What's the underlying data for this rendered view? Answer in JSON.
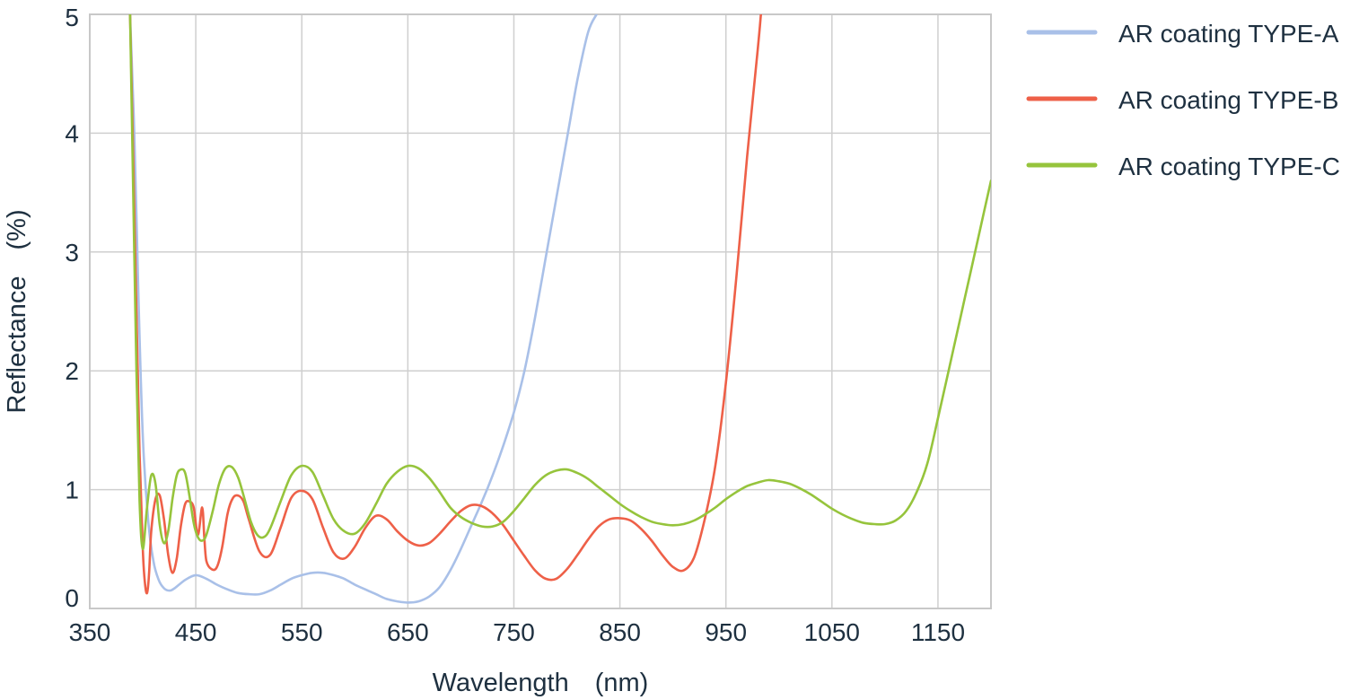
{
  "chart_data": {
    "type": "line",
    "title": "",
    "xlabel": "Wavelength (nm)",
    "ylabel": "Reflectance (%)",
    "xlim": [
      350,
      1200
    ],
    "ylim": [
      0,
      5
    ],
    "grid": true,
    "legend_position": "top-right (outside plot)",
    "xticks": [
      350,
      450,
      550,
      650,
      750,
      850,
      950,
      1050,
      1150
    ],
    "xtick_labels": [
      "350",
      "450",
      "550",
      "650",
      "750",
      "850",
      "950",
      "1050",
      "1150"
    ],
    "yticks": [
      0,
      1,
      2,
      3,
      4,
      5
    ],
    "ytick_labels": [
      "0",
      "1",
      "2",
      "3",
      "4",
      "5"
    ],
    "series": [
      {
        "name": "AR coating TYPE-A",
        "color": "#a9c0e8",
        "x": [
          388,
          392,
          396,
          400,
          405,
          410,
          415,
          420,
          425,
          430,
          440,
          450,
          460,
          470,
          480,
          490,
          500,
          510,
          520,
          530,
          540,
          550,
          560,
          570,
          580,
          590,
          600,
          610,
          620,
          630,
          640,
          650,
          660,
          670,
          680,
          690,
          700,
          710,
          720,
          730,
          740,
          750,
          760,
          770,
          780,
          790,
          800,
          810,
          820,
          828
        ],
        "y": [
          5.0,
          4.0,
          2.6,
          1.45,
          0.75,
          0.4,
          0.24,
          0.17,
          0.15,
          0.17,
          0.24,
          0.28,
          0.25,
          0.2,
          0.16,
          0.13,
          0.12,
          0.12,
          0.15,
          0.2,
          0.25,
          0.28,
          0.3,
          0.3,
          0.28,
          0.25,
          0.2,
          0.16,
          0.12,
          0.08,
          0.06,
          0.05,
          0.06,
          0.1,
          0.18,
          0.32,
          0.5,
          0.7,
          0.9,
          1.12,
          1.37,
          1.65,
          2.0,
          2.45,
          2.95,
          3.45,
          3.95,
          4.45,
          4.85,
          5.0
        ]
      },
      {
        "name": "AR coating TYPE-B",
        "color": "#ee6048",
        "x": [
          388,
          391,
          394,
          397,
          400,
          402,
          404,
          406,
          408,
          412,
          416,
          420,
          424,
          428,
          432,
          436,
          440,
          444,
          448,
          452,
          456,
          458,
          460,
          465,
          470,
          475,
          480,
          485,
          490,
          495,
          500,
          510,
          520,
          530,
          540,
          550,
          560,
          570,
          580,
          590,
          600,
          610,
          620,
          630,
          640,
          650,
          660,
          670,
          680,
          690,
          700,
          710,
          720,
          730,
          740,
          750,
          760,
          770,
          780,
          790,
          800,
          810,
          820,
          830,
          840,
          850,
          860,
          870,
          880,
          890,
          900,
          910,
          920,
          930,
          940,
          950,
          960,
          970,
          980,
          983
        ],
        "y": [
          5.0,
          3.8,
          2.5,
          1.3,
          0.5,
          0.22,
          0.13,
          0.3,
          0.65,
          0.92,
          0.95,
          0.75,
          0.45,
          0.3,
          0.42,
          0.7,
          0.88,
          0.9,
          0.85,
          0.62,
          0.85,
          0.6,
          0.4,
          0.33,
          0.35,
          0.52,
          0.8,
          0.93,
          0.95,
          0.9,
          0.75,
          0.48,
          0.45,
          0.68,
          0.93,
          0.99,
          0.92,
          0.68,
          0.47,
          0.42,
          0.52,
          0.68,
          0.78,
          0.75,
          0.65,
          0.57,
          0.53,
          0.55,
          0.63,
          0.73,
          0.82,
          0.87,
          0.86,
          0.8,
          0.7,
          0.57,
          0.44,
          0.32,
          0.25,
          0.25,
          0.33,
          0.45,
          0.58,
          0.69,
          0.75,
          0.76,
          0.74,
          0.67,
          0.57,
          0.45,
          0.35,
          0.32,
          0.43,
          0.75,
          1.2,
          1.9,
          2.8,
          3.8,
          4.7,
          5.0
        ]
      },
      {
        "name": "AR coating TYPE-C",
        "color": "#96c43c",
        "x": [
          388,
          391,
          394,
          397,
          400,
          404,
          408,
          412,
          416,
          420,
          424,
          428,
          432,
          436,
          440,
          444,
          448,
          452,
          456,
          460,
          466,
          472,
          478,
          484,
          490,
          496,
          502,
          508,
          514,
          520,
          530,
          540,
          550,
          560,
          570,
          580,
          590,
          600,
          610,
          620,
          630,
          640,
          650,
          660,
          670,
          680,
          690,
          700,
          710,
          720,
          730,
          740,
          750,
          760,
          770,
          780,
          790,
          800,
          810,
          820,
          830,
          840,
          850,
          860,
          870,
          880,
          890,
          900,
          910,
          920,
          930,
          940,
          950,
          960,
          970,
          980,
          990,
          1000,
          1010,
          1020,
          1030,
          1040,
          1050,
          1060,
          1070,
          1080,
          1090,
          1100,
          1110,
          1120,
          1130,
          1140,
          1150,
          1160,
          1170,
          1180,
          1190,
          1200
        ],
        "y": [
          5.0,
          3.5,
          2.0,
          0.9,
          0.5,
          0.85,
          1.12,
          1.05,
          0.7,
          0.55,
          0.65,
          0.92,
          1.12,
          1.17,
          1.14,
          0.95,
          0.72,
          0.6,
          0.57,
          0.62,
          0.82,
          1.05,
          1.18,
          1.19,
          1.1,
          0.92,
          0.73,
          0.62,
          0.6,
          0.67,
          0.9,
          1.12,
          1.2,
          1.15,
          0.95,
          0.75,
          0.65,
          0.63,
          0.72,
          0.88,
          1.05,
          1.15,
          1.2,
          1.18,
          1.1,
          0.98,
          0.85,
          0.77,
          0.72,
          0.69,
          0.69,
          0.73,
          0.82,
          0.93,
          1.04,
          1.12,
          1.16,
          1.17,
          1.14,
          1.09,
          1.02,
          0.95,
          0.88,
          0.82,
          0.77,
          0.73,
          0.71,
          0.7,
          0.71,
          0.74,
          0.79,
          0.85,
          0.92,
          0.98,
          1.03,
          1.06,
          1.08,
          1.07,
          1.05,
          1.01,
          0.96,
          0.9,
          0.84,
          0.79,
          0.75,
          0.72,
          0.71,
          0.71,
          0.74,
          0.82,
          0.98,
          1.22,
          1.6,
          2.0,
          2.4,
          2.8,
          3.2,
          3.6
        ]
      }
    ]
  }
}
